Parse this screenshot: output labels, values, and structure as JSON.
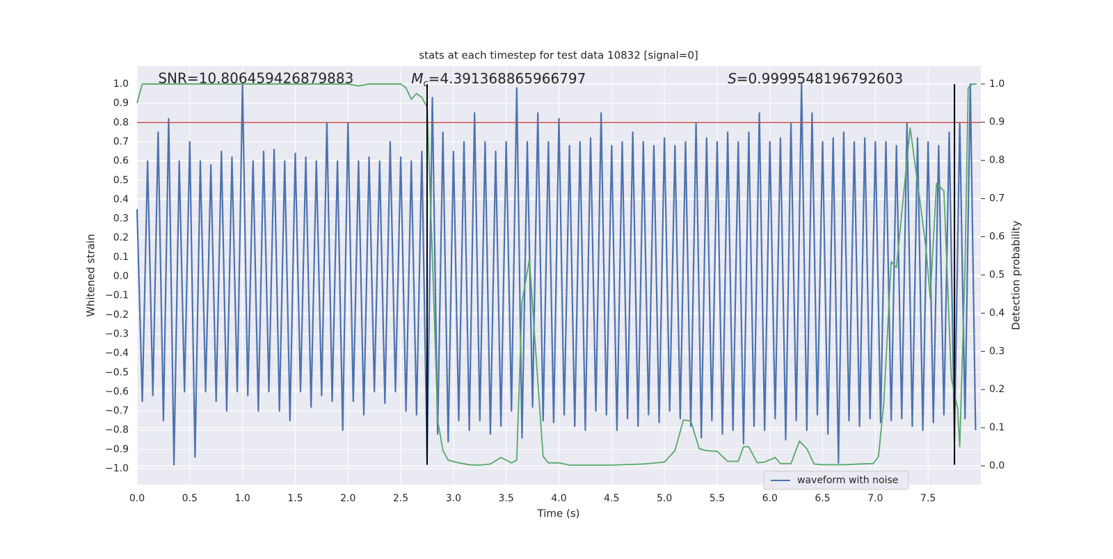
{
  "chart_data": {
    "type": "line",
    "title": "stats at each timestep for test data 10832 [signal=0]",
    "xlabel": "Time (s)",
    "ylabel": "Whitened strain",
    "y2label": "Detection probability",
    "annotations": [
      {
        "text": "SNR=10.806459426879883",
        "x": 0.2
      },
      {
        "symbol": "M",
        "subscript": "c",
        "text": "=4.391368865966797",
        "x": 2.6
      },
      {
        "symbol": "S",
        "text": "=0.9999548196792603",
        "x": 5.6
      }
    ],
    "xlim": [
      0,
      8.0
    ],
    "ylim": [
      -1.083,
      1.094
    ],
    "y2lim": [
      -0.049,
      1.047
    ],
    "xticks": [
      {
        "value": 0,
        "label": "0.0"
      },
      0.5,
      {
        "value": 1,
        "label": "1.0"
      },
      1.5,
      {
        "value": 2,
        "label": "2.0"
      },
      2.5,
      {
        "value": 3,
        "label": "3.0"
      },
      3.5,
      {
        "value": 4,
        "label": "4.0"
      },
      4.5,
      {
        "value": 5,
        "label": "5.0"
      },
      5.5,
      {
        "value": 6,
        "label": "6.0"
      },
      6.5,
      {
        "value": 7,
        "label": "7.0"
      },
      7.5
    ],
    "yticks": [
      {
        "value": -1,
        "label": "−1.0"
      },
      {
        "value": -0.9,
        "label": "−0.9"
      },
      {
        "value": -0.8,
        "label": "−0.8"
      },
      {
        "value": -0.7,
        "label": "−0.7"
      },
      {
        "value": -0.6,
        "label": "−0.6"
      },
      {
        "value": -0.5,
        "label": "−0.5"
      },
      {
        "value": -0.4,
        "label": "−0.4"
      },
      {
        "value": -0.3,
        "label": "−0.3"
      },
      {
        "value": -0.2,
        "label": "−0.2"
      },
      {
        "value": -0.1,
        "label": "−0.1"
      },
      {
        "value": 0,
        "label": "0.0"
      },
      0.1,
      0.2,
      0.3,
      0.4,
      0.5,
      0.6,
      0.7,
      0.8,
      0.9,
      {
        "value": 1,
        "label": "1.0"
      }
    ],
    "y2ticks": [
      {
        "value": 0,
        "label": "0.0"
      },
      0.1,
      0.2,
      0.3,
      0.4,
      0.5,
      0.6,
      0.7,
      0.8,
      0.9,
      {
        "value": 1,
        "label": "1.0"
      }
    ],
    "grid": true,
    "legend": "lower right",
    "hlines": [
      {
        "y": 0.8,
        "color": "#c44e52"
      }
    ],
    "vlines": [
      {
        "x": 2.75,
        "ymin": -0.98,
        "ymax": 1.0,
        "color": "#000000"
      },
      {
        "x": 7.75,
        "ymin": -0.98,
        "ymax": 1.0,
        "color": "#000000"
      }
    ],
    "series": [
      {
        "name": "waveform with noise",
        "color": "#4c72b0",
        "x": [
          0,
          0.05,
          0.1,
          0.15,
          0.2,
          0.25,
          0.3,
          0.35,
          0.4,
          0.45,
          0.5,
          0.55,
          0.6,
          0.65,
          0.7,
          0.75,
          0.8,
          0.85,
          0.9,
          0.95,
          1.0,
          1.05,
          1.1,
          1.15,
          1.2,
          1.25,
          1.3,
          1.35,
          1.4,
          1.45,
          1.5,
          1.55,
          1.6,
          1.65,
          1.7,
          1.75,
          1.8,
          1.85,
          1.9,
          1.95,
          2.0,
          2.05,
          2.1,
          2.15,
          2.2,
          2.25,
          2.3,
          2.35,
          2.4,
          2.45,
          2.5,
          2.55,
          2.6,
          2.65,
          2.7,
          2.75,
          2.8,
          2.85,
          2.9,
          2.95,
          3.0,
          3.05,
          3.1,
          3.15,
          3.2,
          3.25,
          3.3,
          3.35,
          3.4,
          3.45,
          3.5,
          3.55,
          3.6,
          3.65,
          3.7,
          3.75,
          3.8,
          3.85,
          3.9,
          3.95,
          4.0,
          4.05,
          4.1,
          4.15,
          4.2,
          4.25,
          4.3,
          4.35,
          4.4,
          4.45,
          4.5,
          4.55,
          4.6,
          4.65,
          4.7,
          4.75,
          4.8,
          4.85,
          4.9,
          4.95,
          5.0,
          5.05,
          5.1,
          5.15,
          5.2,
          5.25,
          5.3,
          5.35,
          5.4,
          5.45,
          5.5,
          5.55,
          5.6,
          5.65,
          5.7,
          5.75,
          5.8,
          5.85,
          5.9,
          5.95,
          6.0,
          6.05,
          6.1,
          6.15,
          6.2,
          6.25,
          6.3,
          6.35,
          6.4,
          6.45,
          6.5,
          6.55,
          6.6,
          6.65,
          6.7,
          6.75,
          6.8,
          6.85,
          6.9,
          6.95,
          7.0,
          7.05,
          7.1,
          7.15,
          7.2,
          7.25,
          7.3,
          7.35,
          7.4,
          7.45,
          7.5,
          7.55,
          7.6,
          7.65,
          7.7,
          7.75,
          7.8,
          7.85,
          7.9,
          7.95
        ],
        "values": [
          0.35,
          -0.65,
          0.6,
          -0.62,
          0.75,
          -0.75,
          0.82,
          -0.98,
          0.6,
          -0.6,
          0.7,
          -0.94,
          0.6,
          -0.6,
          0.58,
          -0.65,
          0.65,
          -0.7,
          0.62,
          -0.6,
          1.0,
          -0.62,
          0.6,
          -0.7,
          0.65,
          -0.6,
          0.66,
          -0.7,
          0.6,
          -0.75,
          0.64,
          -0.6,
          0.62,
          -0.68,
          0.6,
          -0.62,
          0.8,
          -0.65,
          0.6,
          -0.8,
          0.8,
          -0.65,
          0.6,
          -0.72,
          0.62,
          -0.6,
          0.6,
          -0.66,
          0.7,
          -0.6,
          0.62,
          -0.7,
          0.6,
          -0.72,
          0.65,
          -0.95,
          0.93,
          -0.82,
          0.75,
          -0.86,
          0.65,
          -0.75,
          0.7,
          -0.8,
          0.85,
          -0.75,
          0.7,
          -0.82,
          0.65,
          -0.78,
          0.7,
          -0.7,
          0.98,
          -0.84,
          0.7,
          -0.68,
          0.85,
          -0.75,
          0.7,
          -0.76,
          0.82,
          -0.72,
          0.68,
          -0.78,
          0.7,
          -0.8,
          0.72,
          -0.7,
          0.85,
          -0.72,
          0.68,
          -0.8,
          0.7,
          -0.74,
          0.75,
          -0.78,
          0.7,
          -0.72,
          0.68,
          -0.76,
          0.72,
          -0.7,
          0.68,
          -0.74,
          0.7,
          -0.78,
          0.8,
          -0.84,
          0.72,
          -0.75,
          0.7,
          -0.82,
          0.75,
          -0.8,
          0.7,
          -0.87,
          0.75,
          -0.78,
          0.85,
          -0.8,
          0.7,
          -0.74,
          0.72,
          -0.85,
          0.8,
          -0.75,
          1.0,
          -0.8,
          0.85,
          -0.72,
          0.7,
          -0.82,
          0.72,
          -0.97,
          0.75,
          -0.75,
          0.7,
          -0.78,
          0.72,
          -0.74,
          0.7,
          -0.76,
          0.7,
          -0.75,
          0.68,
          -0.74,
          0.8,
          -0.78,
          0.72,
          -0.8,
          0.7,
          -0.76,
          0.68,
          -0.72,
          0.75,
          -0.85,
          0.8,
          -0.74,
          1.0,
          -0.8
        ]
      },
      {
        "color": "#55a868",
        "axis": "y2",
        "x": [
          0,
          0.05,
          0.5,
          1.0,
          1.5,
          2.0,
          2.1,
          2.2,
          2.5,
          2.55,
          2.6,
          2.65,
          2.7,
          2.75,
          2.8,
          2.85,
          2.9,
          2.95,
          3.05,
          3.15,
          3.25,
          3.35,
          3.45,
          3.55,
          3.6,
          3.65,
          3.72,
          3.78,
          3.85,
          3.9,
          4.0,
          4.1,
          4.5,
          4.8,
          5.0,
          5.1,
          5.18,
          5.25,
          5.33,
          5.4,
          5.5,
          5.6,
          5.7,
          5.75,
          5.8,
          5.88,
          5.95,
          6.05,
          6.1,
          6.2,
          6.28,
          6.35,
          6.42,
          6.5,
          6.7,
          6.85,
          6.98,
          7.03,
          7.08,
          7.15,
          7.2,
          7.33,
          7.42,
          7.48,
          7.52,
          7.58,
          7.65,
          7.72,
          7.78,
          7.8,
          7.85,
          7.88,
          7.92,
          7.96
        ],
        "values": [
          0.95,
          1.0,
          1.0,
          1.0,
          1.0,
          1.0,
          0.995,
          1.0,
          1.0,
          0.99,
          0.96,
          0.975,
          0.965,
          0.94,
          0.55,
          0.12,
          0.04,
          0.015,
          0.008,
          0.003,
          0.002,
          0.005,
          0.022,
          0.008,
          0.015,
          0.43,
          0.54,
          0.3,
          0.025,
          0.008,
          0.008,
          0.002,
          0.002,
          0.005,
          0.01,
          0.04,
          0.12,
          0.118,
          0.045,
          0.04,
          0.038,
          0.012,
          0.012,
          0.05,
          0.05,
          0.008,
          0.01,
          0.022,
          0.006,
          0.006,
          0.065,
          0.045,
          0.005,
          0.003,
          0.003,
          0.005,
          0.006,
          0.025,
          0.165,
          0.535,
          0.52,
          0.885,
          0.7,
          0.57,
          0.44,
          0.74,
          0.72,
          0.23,
          0.15,
          0.05,
          0.52,
          0.99,
          1.0,
          1.0
        ]
      }
    ]
  }
}
